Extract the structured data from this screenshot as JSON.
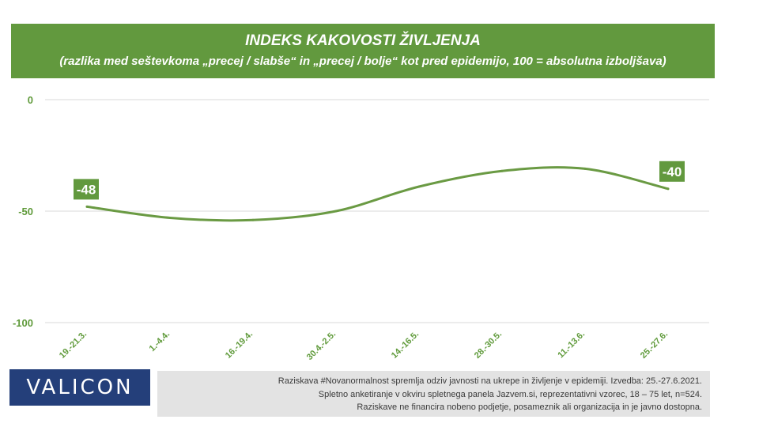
{
  "colors": {
    "accent": "#62993e",
    "line": "#6a9a43",
    "tick_label": "#5f9a3a",
    "grid": "#d9d9d9",
    "logo_bg": "#243f7a",
    "footer_bg": "#e3e3e3"
  },
  "header": {
    "title": "INDEKS KAKOVOSTI ŽIVLJENJA",
    "subtitle": "(razlika med seštevkoma „precej / slabše“ in „precej / bolje“ kot pred epidemijo, 100 = absolutna izboljšava)"
  },
  "chart_data": {
    "type": "line",
    "title": "INDEKS KAKOVOSTI ŽIVLJENJA",
    "subtitle": "(razlika med seštevkoma „precej / slabše“ in „precej / bolje“ kot pred epidemijo, 100 = absolutna izboljšava)",
    "categories": [
      "19.-21.3.",
      "1.-4.4.",
      "16.-19.4.",
      "30.4.-2.5.",
      "14.-16.5.",
      "28.-30.5.",
      "11.-13.6.",
      "25.-27.6."
    ],
    "series": [
      {
        "values": [
          -48,
          -53,
          -54,
          -50,
          -39,
          -32,
          -31,
          -40
        ]
      }
    ],
    "data_labels": [
      {
        "index": 0,
        "text": "-48"
      },
      {
        "index": 7,
        "text": "-40"
      }
    ],
    "yticks": [
      0,
      -50,
      -100
    ],
    "ytick_labels": [
      "0",
      "-50",
      "-100"
    ],
    "ylim": [
      -100,
      0
    ],
    "grid": true,
    "smooth": true,
    "legend": "none"
  },
  "footer": {
    "lines": [
      "Raziskava #Novanormalnost spremlja odziv javnosti na ukrepe in življenje v epidemiji. Izvedba: 25.-27.6.2021.",
      "Spletno anketiranje v okviru spletnega panela Jazvem.si, reprezentativni vzorec, 18 – 75 let, n=524.",
      "Raziskave ne financira nobeno podjetje, posameznik ali organizacija in je javno dostopna."
    ]
  },
  "logo": {
    "text": "VALICON"
  }
}
